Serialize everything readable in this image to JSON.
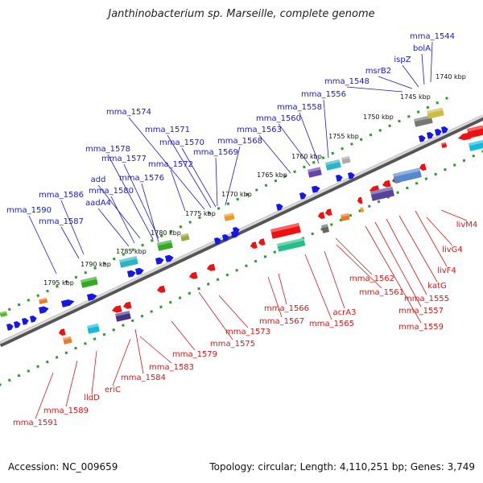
{
  "title": "Janthinobacterium sp. Marseille, complete genome",
  "footer": {
    "accession": "Accession: NC_009659",
    "summary": "Topology: circular; Length: 4,110,251 bp; Genes: 3,749"
  },
  "colors": {
    "upper_label": "#1a1ad2",
    "lower_label": "#d21a1a",
    "forward_gene": "#1616e6",
    "reverse_gene": "#ee1111",
    "ruler_dots": "#2a9a2a"
  },
  "ruler_ticks": [
    "1740 kbp",
    "1745 kbp",
    "1750 kbp",
    "1755 kbp",
    "1760 kbp",
    "1765 kbp",
    "1770 kbp",
    "1775 kbp",
    "1780 kbp",
    "1785 kbp",
    "1790 kbp",
    "1795 kbp"
  ],
  "upper_labels": [
    "mma_1544",
    "bolA",
    "ispZ",
    "msrB2",
    "mma_1548",
    "mma_1556",
    "mma_1558",
    "mma_1560",
    "mma_1563",
    "mma_1574",
    "mma_1571",
    "mma_1570",
    "mma_1568",
    "mma_1569",
    "mma_1572",
    "mma_1578",
    "mma_1577",
    "mma_1576",
    "add",
    "mma_1580",
    "aadA4",
    "mma_1586",
    "mma_1587",
    "mma_1590"
  ],
  "lower_labels": [
    "livM4",
    "livG4",
    "livF4",
    "katG",
    "mma_1555",
    "mma_1557",
    "mma_1559",
    "mma_1562",
    "mma_1561",
    "acrA3",
    "mma_1565",
    "mma_1566",
    "mma_1567",
    "mma_1573",
    "mma_1575",
    "mma_1579",
    "mma_1583",
    "mma_1584",
    "eriC",
    "lldD",
    "mma_1589",
    "mma_1591"
  ]
}
